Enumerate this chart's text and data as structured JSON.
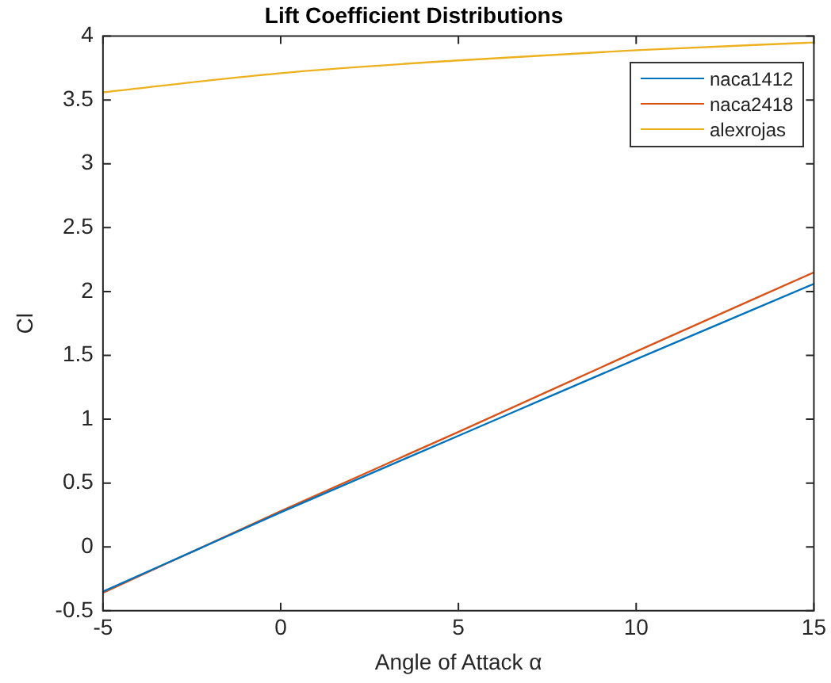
{
  "chart_data": {
    "type": "line",
    "title": "Lift Coefficient Distributions",
    "xlabel": "Angle of Attack α",
    "ylabel": "Cl",
    "x": [
      -5,
      0,
      5,
      10,
      15
    ],
    "series": [
      {
        "name": "naca1412",
        "color": "#0072bd",
        "values": [
          -0.35,
          0.27,
          0.87,
          1.47,
          2.06
        ]
      },
      {
        "name": "naca2418",
        "color": "#d95319",
        "values": [
          -0.36,
          0.28,
          0.9,
          1.53,
          2.15
        ]
      },
      {
        "name": "alexrojas",
        "color": "#edb120",
        "values": [
          3.56,
          3.71,
          3.81,
          3.89,
          3.95
        ]
      }
    ],
    "xlim": [
      -5,
      15
    ],
    "xticks": [
      -5,
      0,
      5,
      10,
      15
    ],
    "ylim": [
      -0.5,
      4
    ],
    "yticks": [
      -0.5,
      0,
      0.5,
      1,
      1.5,
      2,
      2.5,
      3,
      3.5,
      4
    ],
    "grid": false,
    "legend": "top right",
    "marker": "none",
    "line_style": "solid"
  }
}
